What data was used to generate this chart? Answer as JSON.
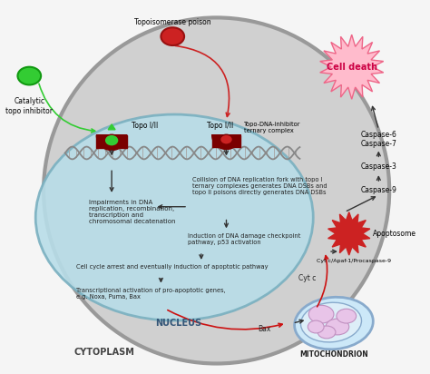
{
  "bg_color": "#f5f5f5",
  "cell_fill": "#d0d0d0",
  "cell_edge": "#999999",
  "nucleus_fill": "#b8dde8",
  "nucleus_edge": "#7ab0c0",
  "dark_red": "#7a0000",
  "bright_red": "#cc2222",
  "green": "#33cc33",
  "pink_fill": "#ffbbcc",
  "pink_edge": "#ee6688",
  "mito_fill": "#cce8f8",
  "mito_edge": "#88aacc",
  "mito_inner": "#e8d8f0",
  "arrow_dark": "#333333",
  "arrow_red": "#cc1111",
  "text_dark": "#222222",
  "text_blue": "#335577",
  "topo_poison_label": "Topoisomerase poison",
  "catalytic_label": "Catalytic\ntopo inhibitor",
  "topo1_label": "Topo I/II",
  "topo2_label": "Topo I/II",
  "topo_dna_label": "Topo-DNA-inhibitor\nternary complex",
  "text1": "Impairments in DNA\nreplication, recombination,\ntranscription and\nchromosomal decatenation",
  "text2": "Collision of DNA replication fork with topo I\nternary complexes generates DNA DSBs and\ntopo II poisons directly generates DNA DSBs",
  "text3": "Induction of DNA damage checkpoint\npathway, p53 activation",
  "text4": "Cell cycle arrest and eventually induction of apoptotic pathway",
  "text5": "Transcriptional activation of pro-apoptotic genes,\ne.g. Noxa, Puma, Bax",
  "caspase67": "Caspase-6\nCaspase-7",
  "caspase3": "Caspase-3",
  "caspase9": "Caspase-9",
  "apoptosome_label": "Apoptosome",
  "cytc_apaf_label": "Cyt c/Apaf-1/Procaspase-9",
  "cytc_label": "Cyt c",
  "bax_label": "Bax",
  "cell_death_label": "Cell death",
  "nucleus_label": "NUCLEUS",
  "cytoplasm_label": "CYTOPLASM",
  "mito_label": "MITOCHONDRION"
}
